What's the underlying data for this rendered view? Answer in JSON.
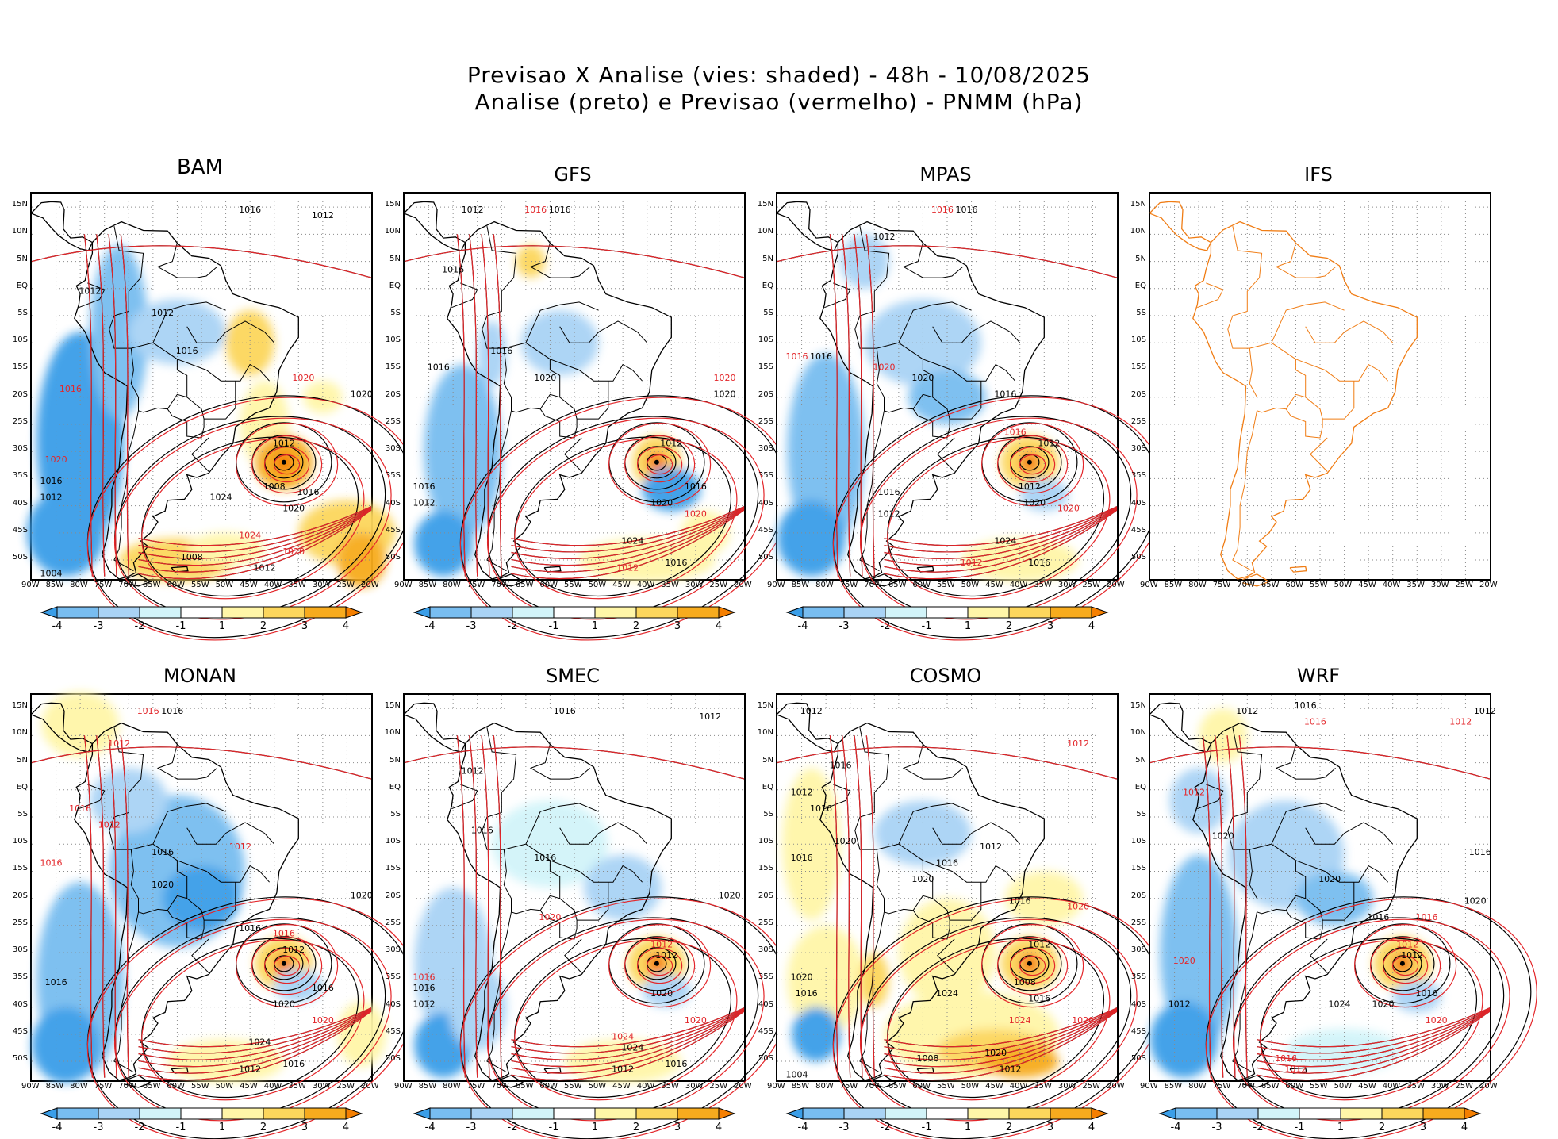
{
  "header": {
    "line1": "Previsao X Analise (vies: shaded) - 48h - 10/08/2025",
    "line2": "Analise (preto) e Previsao (vermelho) - PNMM (hPa)"
  },
  "axes": {
    "lat_labels": [
      "15N",
      "10N",
      "5N",
      "EQ",
      "5S",
      "10S",
      "15S",
      "20S",
      "25S",
      "30S",
      "35S",
      "40S",
      "45S",
      "50S"
    ],
    "lon_labels": [
      "90W",
      "85W",
      "80W",
      "75W",
      "70W",
      "65W",
      "60W",
      "55W",
      "50W",
      "45W",
      "40W",
      "35W",
      "30W",
      "25W",
      "20W"
    ]
  },
  "colorbar": {
    "labels": [
      "-4",
      "-3",
      "-2",
      "-1",
      "1",
      "2",
      "3",
      "4"
    ],
    "colors": [
      "#3a9ee8",
      "#78bdf0",
      "#a9d3f5",
      "#d2f4f9",
      "#ffffff",
      "#fff6a8",
      "#fcd65c",
      "#f7ab1e",
      "#f57f00"
    ]
  },
  "colors": {
    "analysis": "#000000",
    "forecast": "#e3262a",
    "coast_ifs": "#f07d15",
    "grid": "#8a8a8a"
  },
  "panels": [
    {
      "name": "BAM",
      "has_data": true,
      "labels": [
        {
          "t": "1016",
          "lon": -45,
          "lat": 14,
          "c": "k"
        },
        {
          "t": "1012",
          "lon": -30,
          "lat": 13,
          "c": "k"
        },
        {
          "t": "1012",
          "lon": -78,
          "lat": -1,
          "c": "k"
        },
        {
          "t": "1012",
          "lon": -63,
          "lat": -5,
          "c": "k"
        },
        {
          "t": "1016",
          "lon": -58,
          "lat": -12,
          "c": "k"
        },
        {
          "t": "1020",
          "lon": -34,
          "lat": -17,
          "c": "r"
        },
        {
          "t": "1020",
          "lon": -22,
          "lat": -20,
          "c": "k"
        },
        {
          "t": "1016",
          "lon": -82,
          "lat": -19,
          "c": "r"
        },
        {
          "t": "1012",
          "lon": -38,
          "lat": -29,
          "c": "k"
        },
        {
          "t": "1020",
          "lon": -85,
          "lat": -32,
          "c": "r"
        },
        {
          "t": "1008",
          "lon": -40,
          "lat": -37,
          "c": "k"
        },
        {
          "t": "1016",
          "lon": -33,
          "lat": -38,
          "c": "k"
        },
        {
          "t": "1024",
          "lon": -51,
          "lat": -39,
          "c": "k"
        },
        {
          "t": "1020",
          "lon": -36,
          "lat": -41,
          "c": "k"
        },
        {
          "t": "1016",
          "lon": -86,
          "lat": -36,
          "c": "k"
        },
        {
          "t": "1012",
          "lon": -86,
          "lat": -39,
          "c": "k"
        },
        {
          "t": "1024",
          "lon": -45,
          "lat": -46,
          "c": "r"
        },
        {
          "t": "1020",
          "lon": -36,
          "lat": -49,
          "c": "r"
        },
        {
          "t": "1008",
          "lon": -57,
          "lat": -50,
          "c": "k"
        },
        {
          "t": "1012",
          "lon": -42,
          "lat": -52,
          "c": "k"
        },
        {
          "t": "1004",
          "lon": -86,
          "lat": -53,
          "c": "k"
        }
      ]
    },
    {
      "name": "GFS",
      "has_data": true,
      "labels": [
        {
          "t": "1012",
          "lon": -76,
          "lat": 14,
          "c": "k"
        },
        {
          "t": "1016",
          "lon": -63,
          "lat": 14,
          "c": "r"
        },
        {
          "t": "1016",
          "lon": -58,
          "lat": 14,
          "c": "k"
        },
        {
          "t": "1016",
          "lon": -80,
          "lat": 3,
          "c": "k"
        },
        {
          "t": "1016",
          "lon": -70,
          "lat": -12,
          "c": "k"
        },
        {
          "t": "1016",
          "lon": -83,
          "lat": -15,
          "c": "k"
        },
        {
          "t": "1020",
          "lon": -61,
          "lat": -17,
          "c": "k"
        },
        {
          "t": "1020",
          "lon": -24,
          "lat": -17,
          "c": "r"
        },
        {
          "t": "1020",
          "lon": -24,
          "lat": -20,
          "c": "k"
        },
        {
          "t": "1012",
          "lon": -35,
          "lat": -29,
          "c": "k"
        },
        {
          "t": "1016",
          "lon": -30,
          "lat": -37,
          "c": "k"
        },
        {
          "t": "1020",
          "lon": -37,
          "lat": -40,
          "c": "k"
        },
        {
          "t": "1020",
          "lon": -30,
          "lat": -42,
          "c": "r"
        },
        {
          "t": "1016",
          "lon": -86,
          "lat": -37,
          "c": "k"
        },
        {
          "t": "1012",
          "lon": -86,
          "lat": -40,
          "c": "k"
        },
        {
          "t": "1024",
          "lon": -43,
          "lat": -47,
          "c": "k"
        },
        {
          "t": "1016",
          "lon": -34,
          "lat": -51,
          "c": "k"
        },
        {
          "t": "1012",
          "lon": -44,
          "lat": -52,
          "c": "r"
        }
      ]
    },
    {
      "name": "MPAS",
      "has_data": true,
      "labels": [
        {
          "t": "1016",
          "lon": -56,
          "lat": 14,
          "c": "r"
        },
        {
          "t": "1016",
          "lon": -51,
          "lat": 14,
          "c": "k"
        },
        {
          "t": "1012",
          "lon": -68,
          "lat": 9,
          "c": "k"
        },
        {
          "t": "1016",
          "lon": -86,
          "lat": -13,
          "c": "r"
        },
        {
          "t": "1016",
          "lon": -81,
          "lat": -13,
          "c": "k"
        },
        {
          "t": "1020",
          "lon": -68,
          "lat": -15,
          "c": "r"
        },
        {
          "t": "1020",
          "lon": -60,
          "lat": -17,
          "c": "k"
        },
        {
          "t": "1016",
          "lon": -43,
          "lat": -20,
          "c": "k"
        },
        {
          "t": "1016",
          "lon": -41,
          "lat": -27,
          "c": "r"
        },
        {
          "t": "1012",
          "lon": -34,
          "lat": -29,
          "c": "k"
        },
        {
          "t": "1012",
          "lon": -38,
          "lat": -37,
          "c": "k"
        },
        {
          "t": "1020",
          "lon": -37,
          "lat": -40,
          "c": "k"
        },
        {
          "t": "1020",
          "lon": -30,
          "lat": -41,
          "c": "r"
        },
        {
          "t": "1016",
          "lon": -67,
          "lat": -38,
          "c": "k"
        },
        {
          "t": "1012",
          "lon": -67,
          "lat": -42,
          "c": "k"
        },
        {
          "t": "1024",
          "lon": -43,
          "lat": -47,
          "c": "k"
        },
        {
          "t": "1012",
          "lon": -50,
          "lat": -51,
          "c": "r"
        },
        {
          "t": "1016",
          "lon": -36,
          "lat": -51,
          "c": "k"
        }
      ]
    },
    {
      "name": "IFS",
      "has_data": false,
      "labels": []
    },
    {
      "name": "MONAN",
      "has_data": true,
      "labels": [
        {
          "t": "1016",
          "lon": -66,
          "lat": 14,
          "c": "r"
        },
        {
          "t": "1016",
          "lon": -61,
          "lat": 14,
          "c": "k"
        },
        {
          "t": "1012",
          "lon": -72,
          "lat": 8,
          "c": "r"
        },
        {
          "t": "1016",
          "lon": -80,
          "lat": -4,
          "c": "r"
        },
        {
          "t": "1012",
          "lon": -74,
          "lat": -7,
          "c": "r"
        },
        {
          "t": "1016",
          "lon": -86,
          "lat": -14,
          "c": "r"
        },
        {
          "t": "1016",
          "lon": -63,
          "lat": -12,
          "c": "k"
        },
        {
          "t": "1012",
          "lon": -47,
          "lat": -11,
          "c": "r"
        },
        {
          "t": "1020",
          "lon": -63,
          "lat": -18,
          "c": "k"
        },
        {
          "t": "1016",
          "lon": -45,
          "lat": -26,
          "c": "k"
        },
        {
          "t": "1016",
          "lon": -38,
          "lat": -27,
          "c": "r"
        },
        {
          "t": "1012",
          "lon": -36,
          "lat": -30,
          "c": "k"
        },
        {
          "t": "1020",
          "lon": -22,
          "lat": -20,
          "c": "k"
        },
        {
          "t": "1016",
          "lon": -30,
          "lat": -37,
          "c": "k"
        },
        {
          "t": "1020",
          "lon": -38,
          "lat": -40,
          "c": "k"
        },
        {
          "t": "1020",
          "lon": -30,
          "lat": -43,
          "c": "r"
        },
        {
          "t": "1016",
          "lon": -85,
          "lat": -36,
          "c": "k"
        },
        {
          "t": "1024",
          "lon": -43,
          "lat": -47,
          "c": "k"
        },
        {
          "t": "1016",
          "lon": -36,
          "lat": -51,
          "c": "k"
        },
        {
          "t": "1012",
          "lon": -45,
          "lat": -52,
          "c": "k"
        }
      ]
    },
    {
      "name": "SMEC",
      "has_data": true,
      "labels": [
        {
          "t": "1016",
          "lon": -57,
          "lat": 14,
          "c": "k"
        },
        {
          "t": "1012",
          "lon": -27,
          "lat": 13,
          "c": "k"
        },
        {
          "t": "1012",
          "lon": -76,
          "lat": 3,
          "c": "k"
        },
        {
          "t": "1016",
          "lon": -74,
          "lat": -8,
          "c": "k"
        },
        {
          "t": "1016",
          "lon": -61,
          "lat": -13,
          "c": "k"
        },
        {
          "t": "1020",
          "lon": -23,
          "lat": -20,
          "c": "k"
        },
        {
          "t": "1020",
          "lon": -60,
          "lat": -24,
          "c": "r"
        },
        {
          "t": "1012",
          "lon": -37,
          "lat": -29,
          "c": "r"
        },
        {
          "t": "1012",
          "lon": -36,
          "lat": -31,
          "c": "k"
        },
        {
          "t": "1016",
          "lon": -86,
          "lat": -35,
          "c": "r"
        },
        {
          "t": "1016",
          "lon": -86,
          "lat": -37,
          "c": "k"
        },
        {
          "t": "1012",
          "lon": -86,
          "lat": -40,
          "c": "k"
        },
        {
          "t": "1020",
          "lon": -37,
          "lat": -38,
          "c": "k"
        },
        {
          "t": "1020",
          "lon": -30,
          "lat": -43,
          "c": "r"
        },
        {
          "t": "1024",
          "lon": -45,
          "lat": -46,
          "c": "r"
        },
        {
          "t": "1024",
          "lon": -43,
          "lat": -48,
          "c": "k"
        },
        {
          "t": "1016",
          "lon": -34,
          "lat": -51,
          "c": "k"
        },
        {
          "t": "1012",
          "lon": -45,
          "lat": -52,
          "c": "k"
        }
      ]
    },
    {
      "name": "COSMO",
      "has_data": true,
      "labels": [
        {
          "t": "1012",
          "lon": -83,
          "lat": 14,
          "c": "k"
        },
        {
          "t": "1012",
          "lon": -28,
          "lat": 8,
          "c": "r"
        },
        {
          "t": "1016",
          "lon": -77,
          "lat": 4,
          "c": "k"
        },
        {
          "t": "1012",
          "lon": -85,
          "lat": -1,
          "c": "k"
        },
        {
          "t": "1016",
          "lon": -81,
          "lat": -4,
          "c": "k"
        },
        {
          "t": "1020",
          "lon": -76,
          "lat": -10,
          "c": "k"
        },
        {
          "t": "1016",
          "lon": -85,
          "lat": -13,
          "c": "k"
        },
        {
          "t": "1016",
          "lon": -55,
          "lat": -14,
          "c": "k"
        },
        {
          "t": "1012",
          "lon": -46,
          "lat": -11,
          "c": "k"
        },
        {
          "t": "1020",
          "lon": -60,
          "lat": -17,
          "c": "k"
        },
        {
          "t": "1020",
          "lon": -28,
          "lat": -22,
          "c": "r"
        },
        {
          "t": "1016",
          "lon": -40,
          "lat": -21,
          "c": "k"
        },
        {
          "t": "1012",
          "lon": -36,
          "lat": -29,
          "c": "k"
        },
        {
          "t": "1008",
          "lon": -39,
          "lat": -36,
          "c": "k"
        },
        {
          "t": "1016",
          "lon": -36,
          "lat": -39,
          "c": "k"
        },
        {
          "t": "1020",
          "lon": -85,
          "lat": -35,
          "c": "k"
        },
        {
          "t": "1016",
          "lon": -84,
          "lat": -38,
          "c": "k"
        },
        {
          "t": "1024",
          "lon": -55,
          "lat": -38,
          "c": "k"
        },
        {
          "t": "1024",
          "lon": -40,
          "lat": -43,
          "c": "r"
        },
        {
          "t": "1020",
          "lon": -27,
          "lat": -43,
          "c": "r"
        },
        {
          "t": "1020",
          "lon": -45,
          "lat": -49,
          "c": "k"
        },
        {
          "t": "1012",
          "lon": -42,
          "lat": -52,
          "c": "k"
        },
        {
          "t": "1008",
          "lon": -59,
          "lat": -50,
          "c": "k"
        },
        {
          "t": "1004",
          "lon": -86,
          "lat": -53,
          "c": "k"
        }
      ]
    },
    {
      "name": "WRF",
      "has_data": true,
      "labels": [
        {
          "t": "1016",
          "lon": -58,
          "lat": 15,
          "c": "k"
        },
        {
          "t": "1012",
          "lon": -70,
          "lat": 14,
          "c": "k"
        },
        {
          "t": "1016",
          "lon": -56,
          "lat": 12,
          "c": "r"
        },
        {
          "t": "1012",
          "lon": -26,
          "lat": 12,
          "c": "r"
        },
        {
          "t": "1012",
          "lon": -21,
          "lat": 14,
          "c": "k"
        },
        {
          "t": "1012",
          "lon": -81,
          "lat": -1,
          "c": "r"
        },
        {
          "t": "1016",
          "lon": -22,
          "lat": -12,
          "c": "k"
        },
        {
          "t": "1020",
          "lon": -75,
          "lat": -9,
          "c": "k"
        },
        {
          "t": "1020",
          "lon": -53,
          "lat": -17,
          "c": "k"
        },
        {
          "t": "1016",
          "lon": -33,
          "lat": -24,
          "c": "r"
        },
        {
          "t": "1016",
          "lon": -43,
          "lat": -24,
          "c": "k"
        },
        {
          "t": "1012",
          "lon": -37,
          "lat": -29,
          "c": "r"
        },
        {
          "t": "1012",
          "lon": -36,
          "lat": -31,
          "c": "k"
        },
        {
          "t": "1020",
          "lon": -23,
          "lat": -21,
          "c": "k"
        },
        {
          "t": "1020",
          "lon": -83,
          "lat": -32,
          "c": "r"
        },
        {
          "t": "1012",
          "lon": -84,
          "lat": -40,
          "c": "k"
        },
        {
          "t": "1016",
          "lon": -33,
          "lat": -38,
          "c": "k"
        },
        {
          "t": "1020",
          "lon": -42,
          "lat": -40,
          "c": "k"
        },
        {
          "t": "1024",
          "lon": -51,
          "lat": -40,
          "c": "k"
        },
        {
          "t": "1020",
          "lon": -31,
          "lat": -43,
          "c": "r"
        },
        {
          "t": "1016",
          "lon": -62,
          "lat": -50,
          "c": "r"
        },
        {
          "t": "1012",
          "lon": -60,
          "lat": -52,
          "c": "r"
        }
      ]
    }
  ]
}
